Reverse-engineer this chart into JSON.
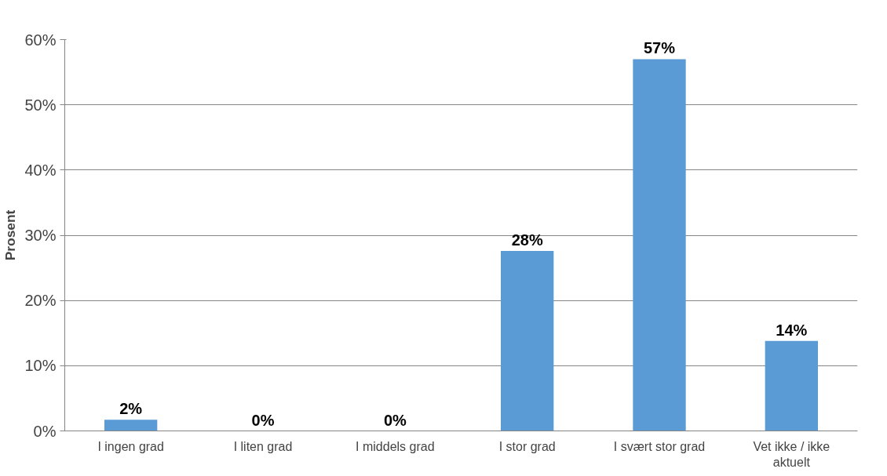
{
  "chart_data": {
    "type": "bar",
    "ylabel": "Prosent",
    "categories": [
      "I ingen grad",
      "I liten grad",
      "I middels grad",
      "I stor grad",
      "I svært stor grad",
      "Vet ikke / ikke aktuelt"
    ],
    "values": [
      1.7,
      0,
      0,
      27.6,
      57,
      13.8
    ],
    "value_labels": [
      "2%",
      "0%",
      "0%",
      "28%",
      "57%",
      "14%"
    ],
    "color": "#5b9bd5",
    "ylim": [
      0,
      60
    ],
    "yticks": [
      {
        "value": 0,
        "label": "0%"
      },
      {
        "value": 10,
        "label": "10%"
      },
      {
        "value": 20,
        "label": "20%"
      },
      {
        "value": 30,
        "label": "30%"
      },
      {
        "value": 40,
        "label": "40%"
      },
      {
        "value": 50,
        "label": "50%"
      },
      {
        "value": 60,
        "label": "60%"
      }
    ],
    "grid": "y"
  }
}
